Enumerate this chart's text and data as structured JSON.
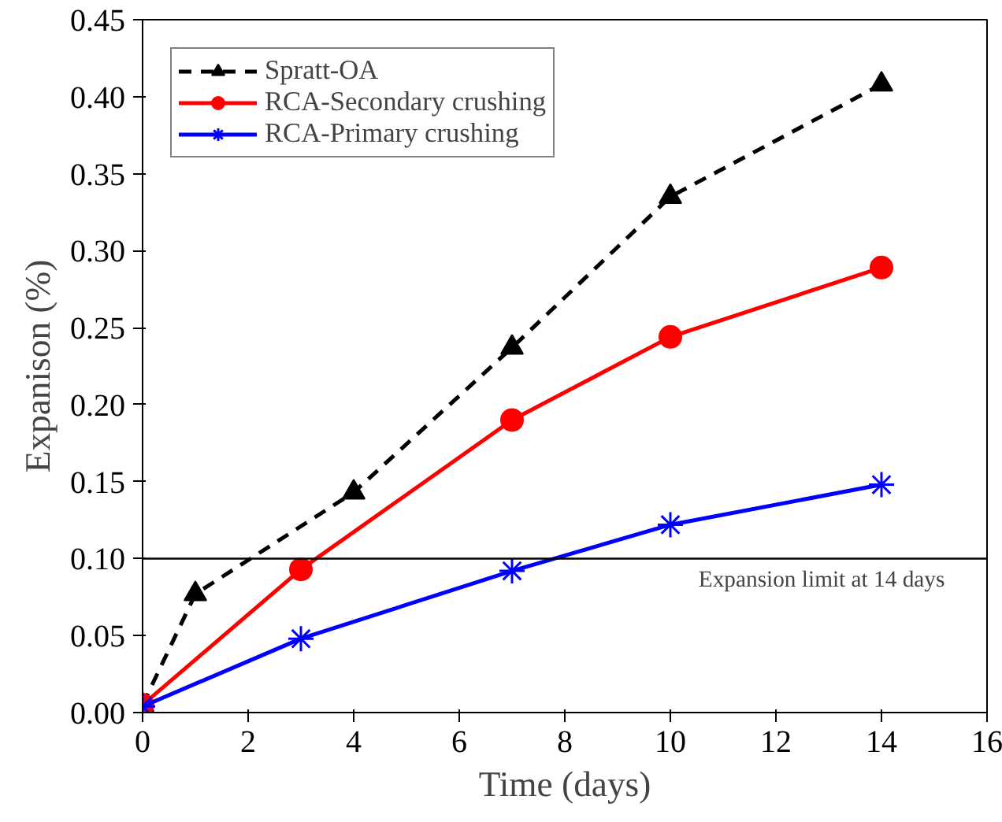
{
  "chart_data": {
    "type": "line",
    "xlabel": "Time (days)",
    "ylabel": "Expanison (%)",
    "xlim": [
      0,
      16
    ],
    "xticks": [
      0,
      2,
      4,
      6,
      8,
      10,
      12,
      14,
      16
    ],
    "ylim": [
      0,
      0.45
    ],
    "yticks": [
      {
        "value": 0,
        "label": "0.00"
      },
      {
        "value": 0.05,
        "label": "0.05"
      },
      {
        "value": 0.1,
        "label": "0.10"
      },
      {
        "value": 0.15,
        "label": "0.15"
      },
      {
        "value": 0.2,
        "label": "0.20"
      },
      {
        "value": 0.25,
        "label": "0.25"
      },
      {
        "value": 0.3,
        "label": "0.30"
      },
      {
        "value": 0.35,
        "label": "0.35"
      },
      {
        "value": 0.4,
        "label": "0.40"
      },
      {
        "value": 0.45,
        "label": "0.45"
      }
    ],
    "grid": false,
    "legend": "top left",
    "series": [
      {
        "name": "Spratt-OA",
        "color": "#000000",
        "marker": "triangle",
        "line_style": "dashed",
        "x": [
          0,
          1,
          4,
          7,
          10,
          14
        ],
        "values": [
          0.005,
          0.077,
          0.143,
          0.237,
          0.335,
          0.408
        ]
      },
      {
        "name": "RCA-Secondary crushing",
        "color": "#ff0000",
        "marker": "circle",
        "line_style": "solid",
        "x": [
          0,
          3,
          7,
          10,
          14
        ],
        "values": [
          0.005,
          0.093,
          0.19,
          0.244,
          0.289
        ]
      },
      {
        "name": "RCA-Primary crushing",
        "color": "#0000ff",
        "marker": "cross",
        "line_style": "solid",
        "x": [
          0,
          3,
          7,
          10,
          14
        ],
        "values": [
          0.004,
          0.048,
          0.092,
          0.122,
          0.148
        ]
      }
    ],
    "ref_lines": [
      {
        "axis": "y",
        "value": 0.1,
        "label": "Expansion limit at 14 days",
        "color": "#000000"
      }
    ]
  }
}
